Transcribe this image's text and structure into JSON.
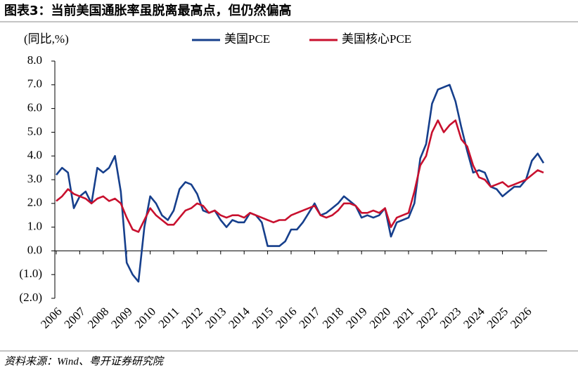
{
  "chart_data": {
    "type": "line",
    "title": "图表3：当前美国通胀率虽脱离最高点，但仍然偏高",
    "y_axis_label": "(同比,%)",
    "source": "资料来源：Wind、粤开证券研究院",
    "categories": [
      "2006",
      null,
      null,
      null,
      "2007",
      null,
      null,
      null,
      "2008",
      null,
      null,
      null,
      "2009",
      null,
      null,
      null,
      "2010",
      null,
      null,
      null,
      "2011",
      null,
      null,
      null,
      "2012",
      null,
      null,
      null,
      "2013",
      null,
      null,
      null,
      "2014",
      null,
      null,
      null,
      "2015",
      null,
      null,
      null,
      "2016",
      null,
      null,
      null,
      "2017",
      null,
      null,
      null,
      "2018",
      null,
      null,
      null,
      "2019",
      null,
      null,
      null,
      "2020",
      null,
      null,
      null,
      "2021",
      null,
      null,
      null,
      "2022",
      null,
      null,
      null,
      "2023",
      null,
      null,
      null,
      "2024",
      null,
      null,
      null,
      "2025",
      null,
      null,
      null,
      "2026",
      null,
      null,
      null
    ],
    "series": [
      {
        "name": "美国PCE",
        "color": "#163f8c",
        "values": [
          3.2,
          3.5,
          3.3,
          1.8,
          2.3,
          2.5,
          2.0,
          3.5,
          3.3,
          3.5,
          4.0,
          2.5,
          -0.5,
          -1.0,
          -1.3,
          1.0,
          2.3,
          2.0,
          1.5,
          1.3,
          1.7,
          2.6,
          2.9,
          2.8,
          2.4,
          1.7,
          1.6,
          1.7,
          1.3,
          1.0,
          1.3,
          1.2,
          1.2,
          1.6,
          1.5,
          1.2,
          0.2,
          0.2,
          0.2,
          0.4,
          0.9,
          0.9,
          1.2,
          1.6,
          2.0,
          1.5,
          1.6,
          1.8,
          2.0,
          2.3,
          2.1,
          1.9,
          1.4,
          1.5,
          1.4,
          1.5,
          1.8,
          0.6,
          1.2,
          1.3,
          1.4,
          2.0,
          3.9,
          4.5,
          6.2,
          6.8,
          6.9,
          7.0,
          6.3,
          5.2,
          4.2,
          3.3,
          3.4,
          3.3,
          2.7,
          2.6,
          2.3,
          2.5,
          2.7,
          2.7,
          3.0,
          3.8,
          4.1,
          3.7
        ]
      },
      {
        "name": "美国核心PCE",
        "color": "#c8102e",
        "values": [
          2.1,
          2.3,
          2.6,
          2.4,
          2.3,
          2.2,
          2.0,
          2.2,
          2.3,
          2.1,
          2.2,
          2.0,
          1.4,
          0.9,
          0.8,
          1.3,
          1.8,
          1.5,
          1.3,
          1.1,
          1.1,
          1.4,
          1.7,
          1.8,
          2.0,
          1.9,
          1.6,
          1.7,
          1.5,
          1.4,
          1.5,
          1.5,
          1.4,
          1.6,
          1.5,
          1.4,
          1.3,
          1.2,
          1.3,
          1.3,
          1.5,
          1.6,
          1.7,
          1.8,
          1.9,
          1.5,
          1.4,
          1.5,
          1.7,
          2.0,
          2.0,
          1.9,
          1.6,
          1.6,
          1.7,
          1.6,
          1.8,
          1.0,
          1.4,
          1.5,
          1.6,
          2.5,
          3.6,
          4.0,
          5.0,
          5.5,
          5.0,
          5.3,
          5.5,
          4.7,
          4.4,
          3.6,
          3.1,
          3.0,
          2.7,
          2.8,
          2.9,
          2.7,
          2.8,
          2.9,
          3.0,
          3.2,
          3.4,
          3.3
        ]
      }
    ],
    "ylim": [
      -2,
      8
    ],
    "yticks": [
      {
        "value": 8,
        "label": "8.0"
      },
      {
        "value": 7,
        "label": "7.0"
      },
      {
        "value": 6,
        "label": "6.0"
      },
      {
        "value": 5,
        "label": "5.0"
      },
      {
        "value": 4,
        "label": "4.0"
      },
      {
        "value": 3,
        "label": "3.0"
      },
      {
        "value": 2,
        "label": "2.0"
      },
      {
        "value": 1,
        "label": "1.0"
      },
      {
        "value": 0,
        "label": "0.0"
      },
      {
        "value": -1,
        "label": "(1.0)"
      },
      {
        "value": -2,
        "label": "(2.0)"
      }
    ],
    "negative_tick_color": "#c00000",
    "legend_position": "top"
  }
}
